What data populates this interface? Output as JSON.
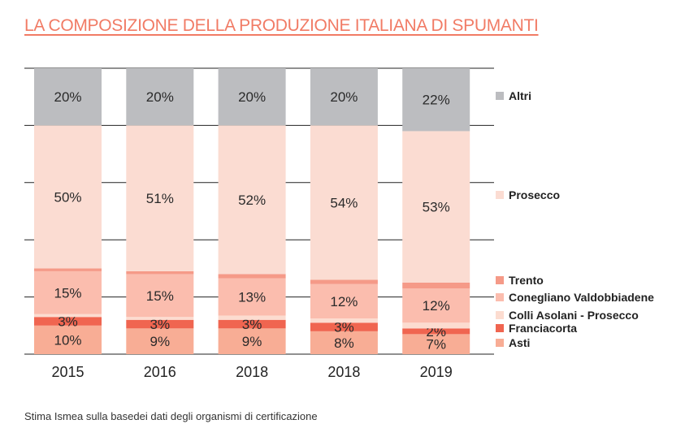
{
  "title": "LA COMPOSIZIONE DELLA PRODUZIONE ITALIANA DI SPUMANTI",
  "footer": "Stima Ismea sulla basedei dati degli organismi di certificazione",
  "chart_data": {
    "type": "bar",
    "stacked": true,
    "title": "LA COMPOSIZIONE DELLA PRODUZIONE ITALIANA DI SPUMANTI",
    "categories": [
      "2015",
      "2016",
      "2018",
      "2018",
      "2019"
    ],
    "ylim": [
      0,
      100
    ],
    "grid": true,
    "legend": "right",
    "series": [
      {
        "name": "Asti",
        "color": "#f8ad95",
        "values": [
          10,
          9,
          9,
          8,
          7
        ],
        "labeled": true
      },
      {
        "name": "Franciacorta",
        "color": "#f06550",
        "values": [
          3,
          3,
          3,
          3,
          2
        ],
        "labeled": true
      },
      {
        "name": "Colli Asolani - Prosecco",
        "color": "#fcdcd0",
        "values": [
          1,
          1,
          1.5,
          1.5,
          2
        ],
        "labeled": false
      },
      {
        "name": "Conegliano Valdobbiadene",
        "color": "#fbbdae",
        "values": [
          15,
          15,
          13,
          12,
          12
        ],
        "labeled": true
      },
      {
        "name": "Trento",
        "color": "#f59a88",
        "values": [
          1,
          1,
          1.5,
          1.5,
          2
        ],
        "labeled": false
      },
      {
        "name": "Prosecco",
        "color": "#fbdcd2",
        "values": [
          50,
          51,
          52,
          54,
          53
        ],
        "labeled": true
      },
      {
        "name": "Altri",
        "color": "#bcbdc0",
        "values": [
          20,
          20,
          20,
          20,
          22
        ],
        "labeled": true
      }
    ]
  }
}
